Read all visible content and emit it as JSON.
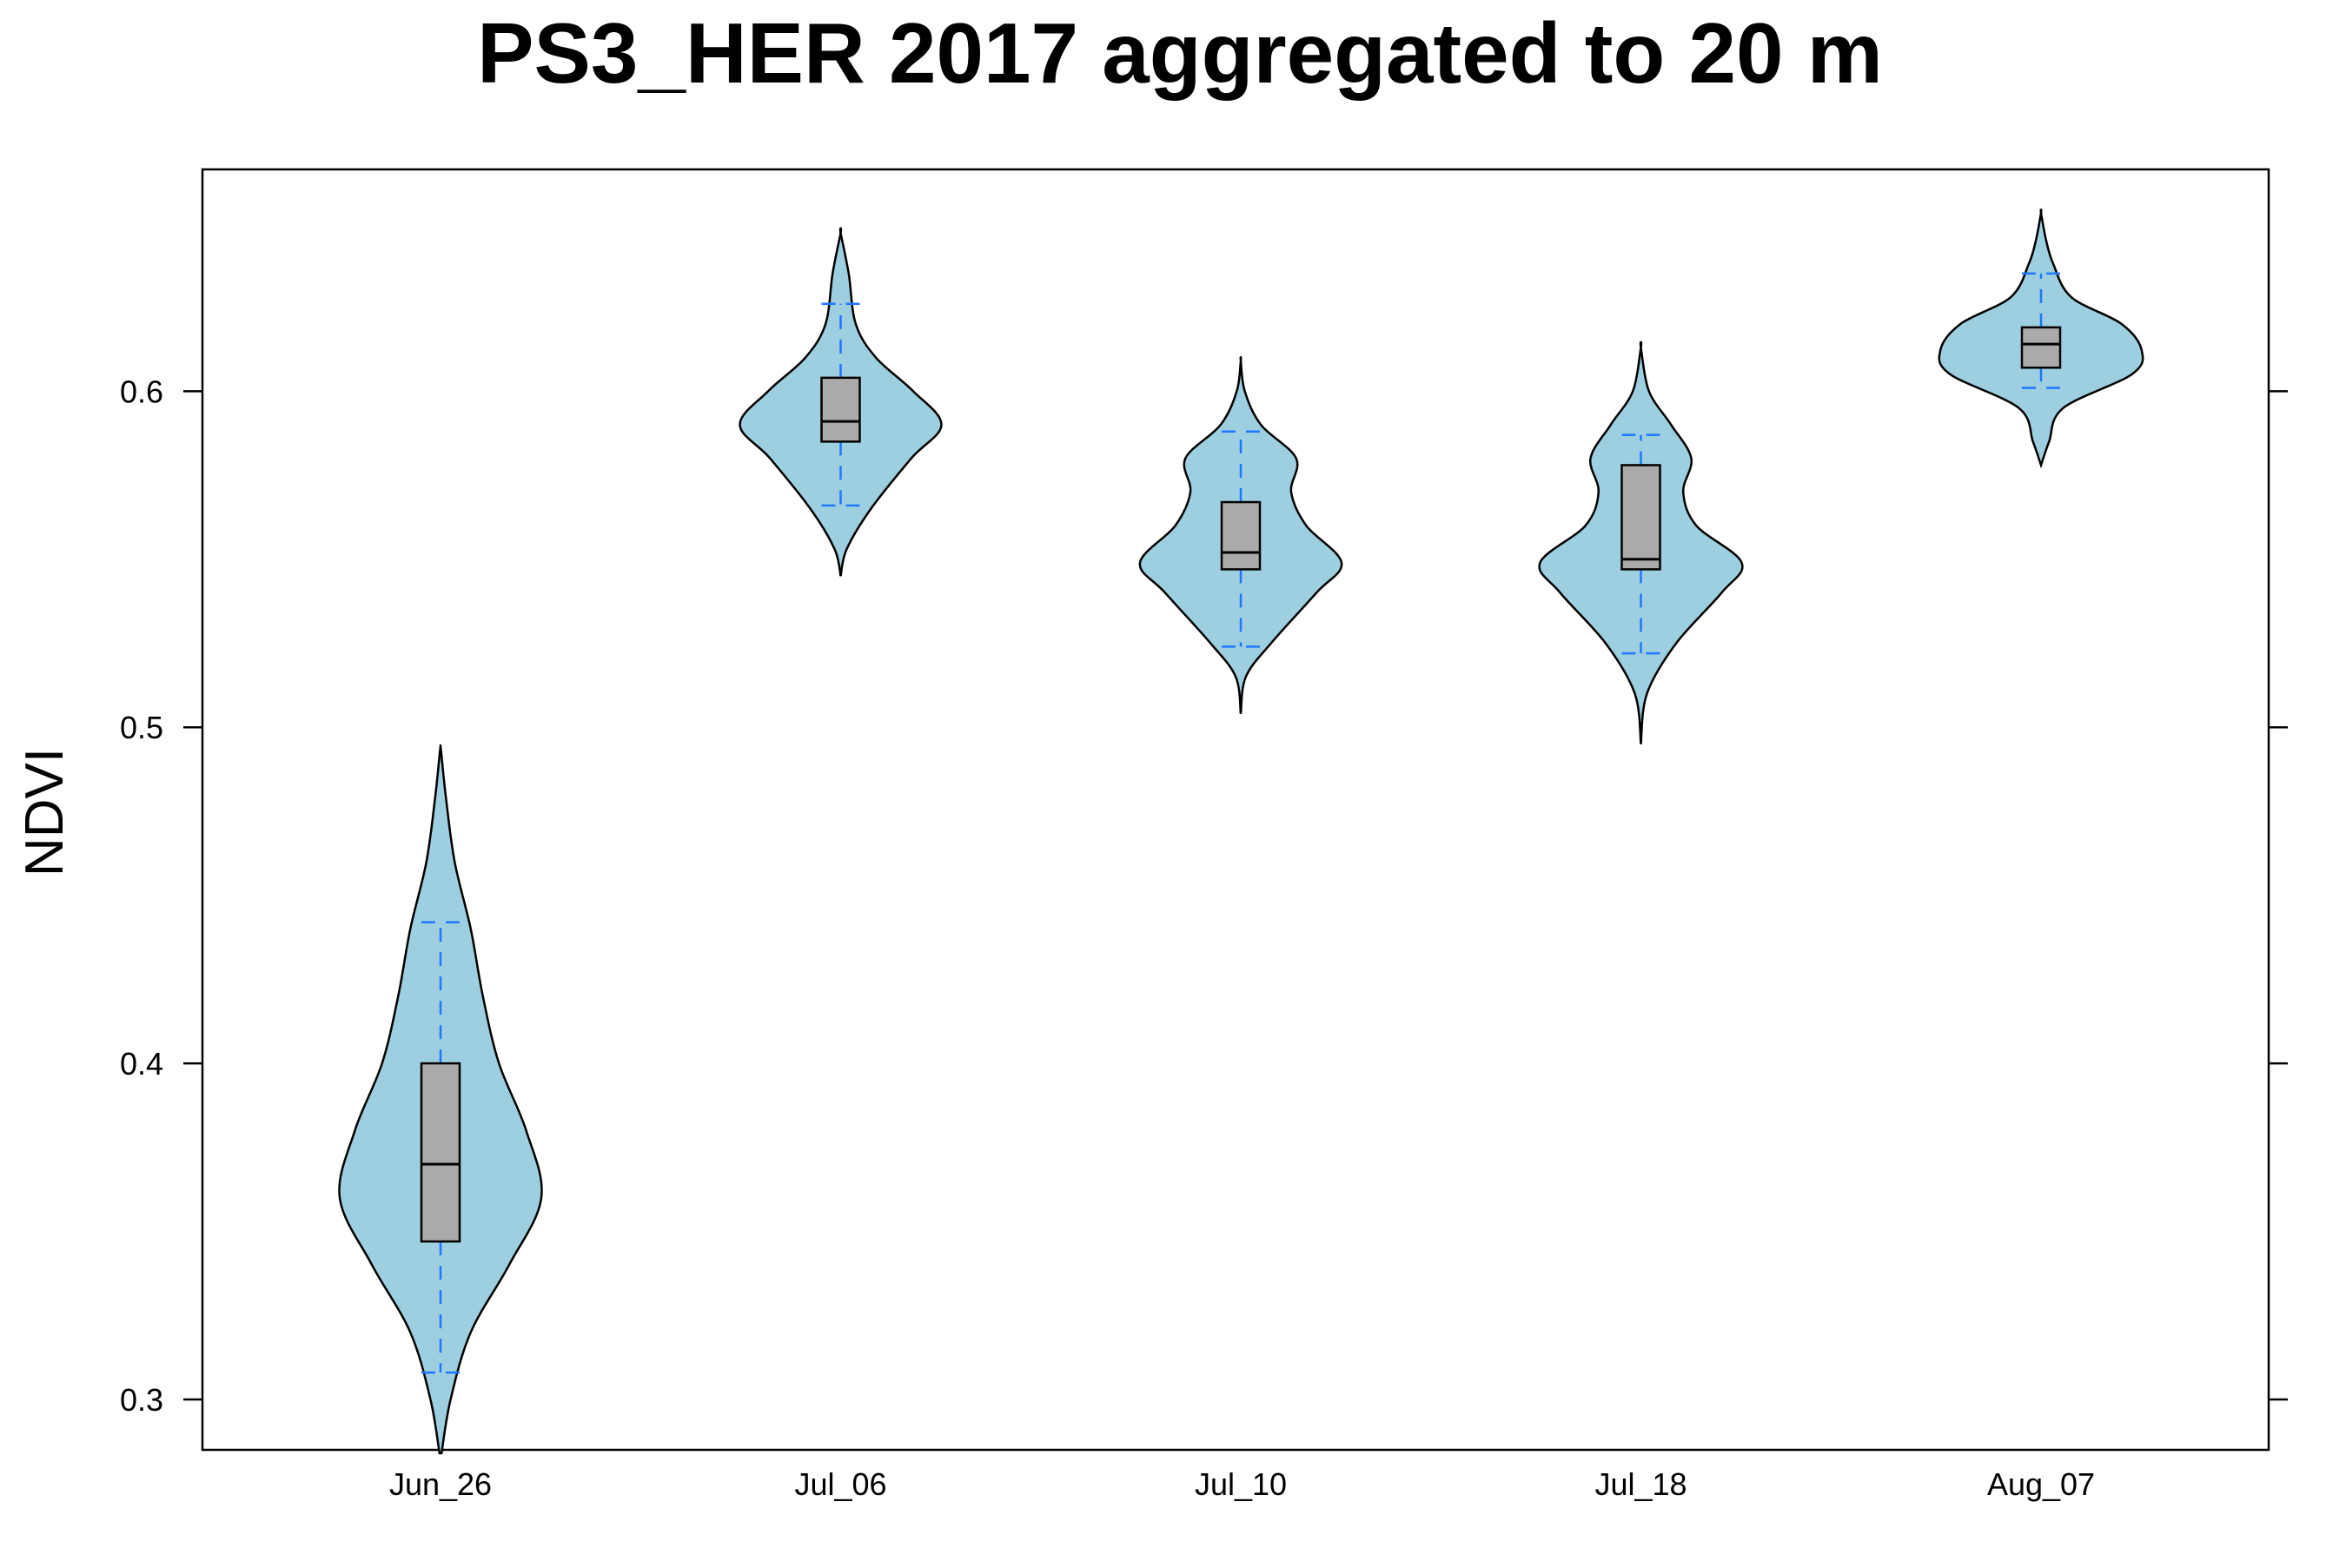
{
  "chart_data": {
    "type": "violin",
    "title": "PS3_HER 2017 aggregated to 20 m",
    "xlabel": "",
    "ylabel": "NDVI",
    "ylim": [
      0.285,
      0.666
    ],
    "yticks": [
      0.3,
      0.4,
      0.5,
      0.6
    ],
    "ytick_labels": [
      "0.3",
      "0.4",
      "0.5",
      "0.6"
    ],
    "categories": [
      "Jun_26",
      "Jul_06",
      "Jul_10",
      "Jul_18",
      "Aug_07"
    ],
    "boxes": [
      {
        "category": "Jun_26",
        "whisker_low": 0.308,
        "q1": 0.347,
        "median": 0.37,
        "q3": 0.4,
        "whisker_high": 0.442
      },
      {
        "category": "Jul_06",
        "whisker_low": 0.566,
        "q1": 0.585,
        "median": 0.591,
        "q3": 0.604,
        "whisker_high": 0.626
      },
      {
        "category": "Jul_10",
        "whisker_low": 0.524,
        "q1": 0.547,
        "median": 0.552,
        "q3": 0.567,
        "whisker_high": 0.588
      },
      {
        "category": "Jul_18",
        "whisker_low": 0.522,
        "q1": 0.547,
        "median": 0.55,
        "q3": 0.578,
        "whisker_high": 0.587
      },
      {
        "category": "Aug_07",
        "whisker_low": 0.601,
        "q1": 0.607,
        "median": 0.614,
        "q3": 0.619,
        "whisker_high": 0.635
      }
    ],
    "violins": [
      {
        "category": "Jun_26",
        "profile": [
          [
            0.284,
            0.01
          ],
          [
            0.3,
            0.1
          ],
          [
            0.32,
            0.3
          ],
          [
            0.34,
            0.68
          ],
          [
            0.36,
            1.0
          ],
          [
            0.38,
            0.85
          ],
          [
            0.4,
            0.58
          ],
          [
            0.42,
            0.42
          ],
          [
            0.44,
            0.3
          ],
          [
            0.46,
            0.14
          ],
          [
            0.48,
            0.05
          ],
          [
            0.493,
            0.005
          ]
        ]
      },
      {
        "category": "Jul_06",
        "profile": [
          [
            0.545,
            0.0
          ],
          [
            0.553,
            0.06
          ],
          [
            0.565,
            0.3
          ],
          [
            0.58,
            0.7
          ],
          [
            0.59,
            1.0
          ],
          [
            0.6,
            0.72
          ],
          [
            0.61,
            0.35
          ],
          [
            0.62,
            0.15
          ],
          [
            0.635,
            0.08
          ],
          [
            0.647,
            0.0
          ]
        ]
      },
      {
        "category": "Jul_10",
        "profile": [
          [
            0.504,
            0.0
          ],
          [
            0.515,
            0.05
          ],
          [
            0.525,
            0.3
          ],
          [
            0.54,
            0.75
          ],
          [
            0.549,
            1.0
          ],
          [
            0.56,
            0.65
          ],
          [
            0.57,
            0.5
          ],
          [
            0.58,
            0.55
          ],
          [
            0.59,
            0.2
          ],
          [
            0.6,
            0.04
          ],
          [
            0.609,
            0.0
          ]
        ]
      },
      {
        "category": "Jul_18",
        "profile": [
          [
            0.495,
            0.0
          ],
          [
            0.51,
            0.06
          ],
          [
            0.525,
            0.35
          ],
          [
            0.54,
            0.8
          ],
          [
            0.549,
            1.0
          ],
          [
            0.56,
            0.55
          ],
          [
            0.57,
            0.42
          ],
          [
            0.58,
            0.5
          ],
          [
            0.59,
            0.3
          ],
          [
            0.6,
            0.08
          ],
          [
            0.613,
            0.0
          ]
        ]
      },
      {
        "category": "Aug_07",
        "profile": [
          [
            0.578,
            0.0
          ],
          [
            0.585,
            0.08
          ],
          [
            0.595,
            0.22
          ],
          [
            0.605,
            0.9
          ],
          [
            0.612,
            1.0
          ],
          [
            0.62,
            0.8
          ],
          [
            0.628,
            0.3
          ],
          [
            0.638,
            0.12
          ],
          [
            0.645,
            0.05
          ],
          [
            0.653,
            0.0
          ]
        ]
      }
    ],
    "colors": {
      "violin_fill": "#9ecfe0",
      "violin_stroke": "#000000",
      "box_fill": "#aaaaaa",
      "box_stroke": "#000000",
      "whisker": "#1f77ff"
    },
    "grid": false
  }
}
